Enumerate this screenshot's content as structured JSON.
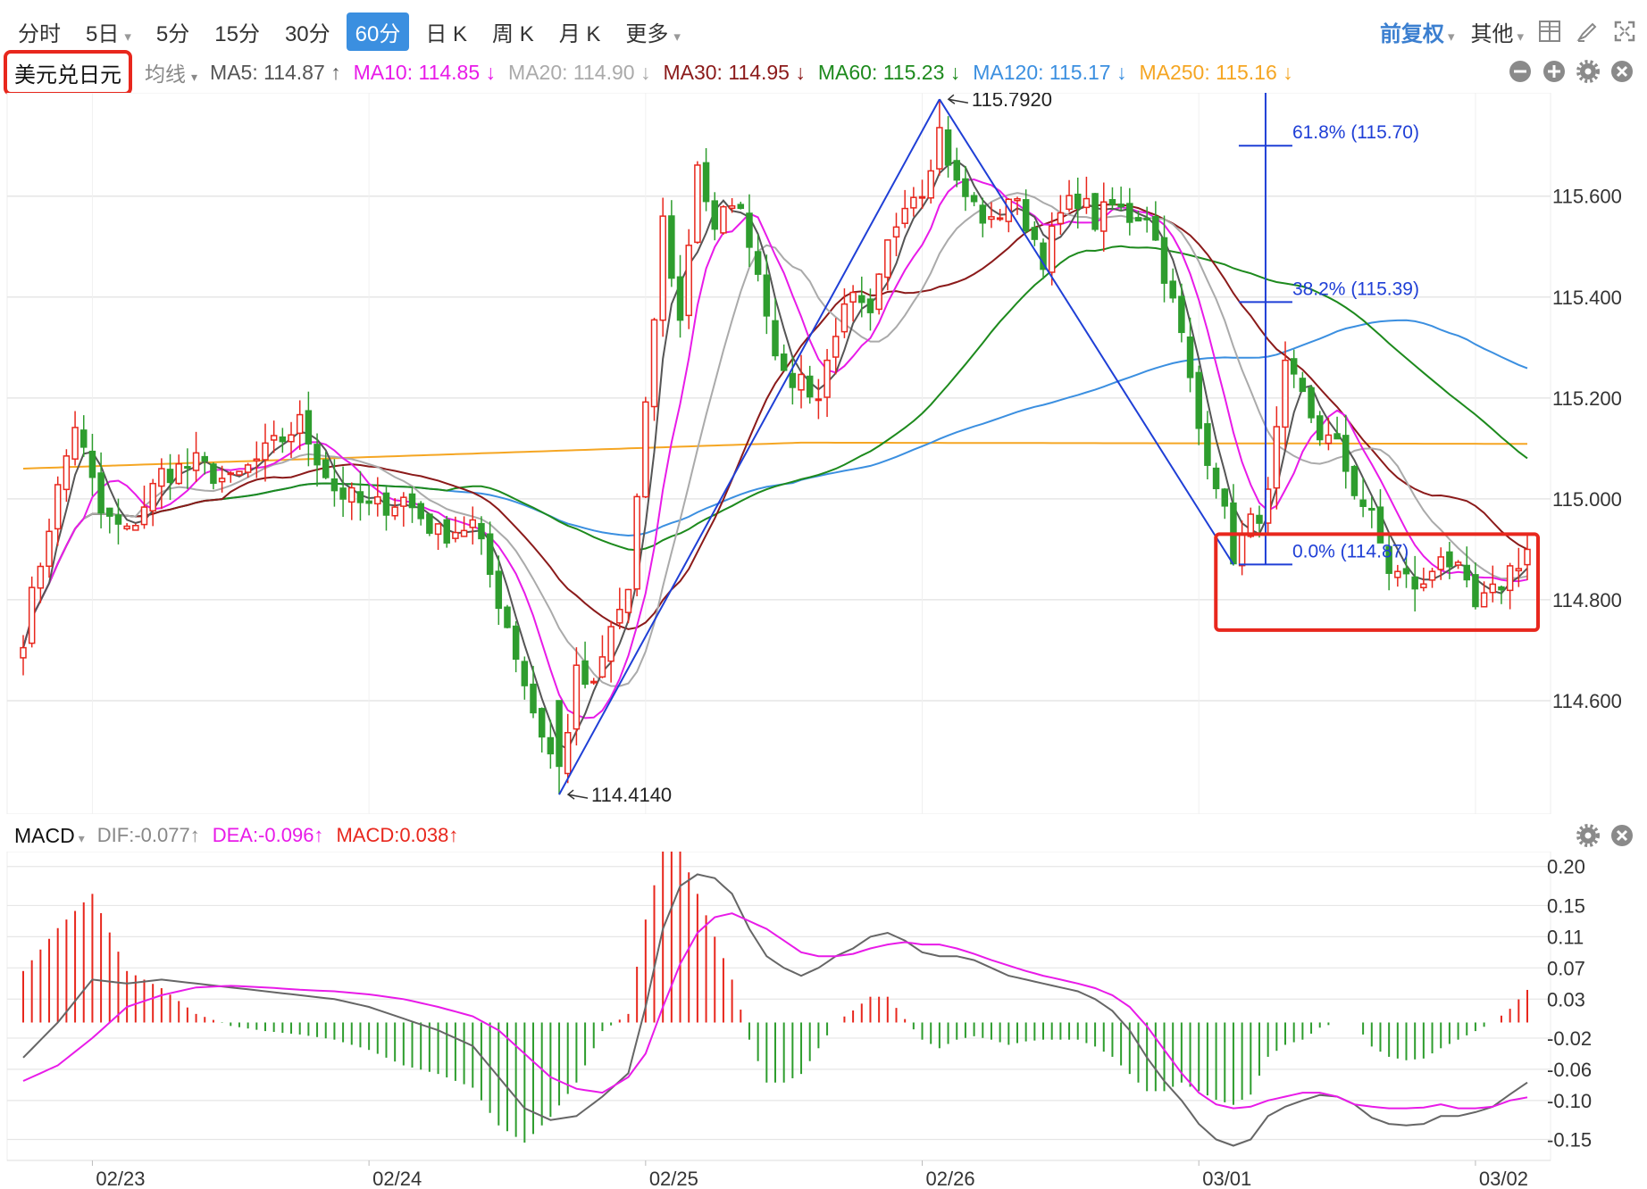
{
  "toolbar": {
    "periods": [
      {
        "label": "分时",
        "dropdown": false,
        "active": false
      },
      {
        "label": "5日",
        "dropdown": true,
        "active": false
      },
      {
        "label": "5分",
        "dropdown": false,
        "active": false
      },
      {
        "label": "15分",
        "dropdown": false,
        "active": false
      },
      {
        "label": "30分",
        "dropdown": false,
        "active": false
      },
      {
        "label": "60分",
        "dropdown": false,
        "active": true
      },
      {
        "label": "日 K",
        "dropdown": false,
        "active": false
      },
      {
        "label": "周 K",
        "dropdown": false,
        "active": false
      },
      {
        "label": "月 K",
        "dropdown": false,
        "active": false
      },
      {
        "label": "更多",
        "dropdown": true,
        "active": false
      }
    ],
    "adjust_label": "前复权",
    "other_label": "其他",
    "tool_icons": [
      "layout-grid-icon",
      "draw-pen-icon",
      "fullscreen-icon"
    ]
  },
  "ma_bar": {
    "symbol": "美元兑日元",
    "ma_type": "均线",
    "items": [
      {
        "text": "MA5: 114.87 ↑",
        "color": "#555555"
      },
      {
        "text": "MA10: 114.85 ↓",
        "color": "#e81be8"
      },
      {
        "text": "MA20: 114.90 ↓",
        "color": "#aaaaaa"
      },
      {
        "text": "MA30: 114.95 ↓",
        "color": "#8b1a1a"
      },
      {
        "text": "MA60: 115.23 ↓",
        "color": "#1d8a1d"
      },
      {
        "text": "MA120: 115.17 ↓",
        "color": "#3b8fe0"
      },
      {
        "text": "MA250: 115.16 ↓",
        "color": "#f5a623"
      }
    ],
    "controls": [
      "minus-circle-icon",
      "plus-circle-icon",
      "gear-icon",
      "close-circle-icon"
    ]
  },
  "macd_bar": {
    "title": "MACD",
    "items": [
      {
        "text": "DIF:-0.077↑",
        "color": "#888888"
      },
      {
        "text": "DEA:-0.096↑",
        "color": "#e81be8"
      },
      {
        "text": "MACD:0.038↑",
        "color": "#e8271d"
      }
    ],
    "controls": [
      "gear-icon",
      "close-circle-icon"
    ]
  },
  "colors": {
    "up": "#e8271d",
    "down": "#2e9d2e",
    "grid": "#e6e6e6",
    "ma5": "#555555",
    "ma10": "#e81be8",
    "ma20": "#aaaaaa",
    "ma30": "#8b1a1a",
    "ma60": "#1d8a1d",
    "ma120": "#3b8fe0",
    "ma250": "#f5a623",
    "dif": "#666666",
    "dea": "#e81be8",
    "fib": "#1f3fd6",
    "highlight": "#e8271d"
  },
  "chart_data": [
    {
      "type": "candlestick",
      "title": "美元兑日元",
      "interval": "60分",
      "ylim": [
        114.4,
        115.78
      ],
      "yticks": [
        "115.600",
        "115.400",
        "115.200",
        "115.000",
        "114.800",
        "114.600"
      ],
      "x_labels": [
        {
          "label": "02/23",
          "index": 8
        },
        {
          "label": "02/24",
          "index": 40
        },
        {
          "label": "02/25",
          "index": 72
        },
        {
          "label": "02/26",
          "index": 104
        },
        {
          "label": "03/01",
          "index": 136
        },
        {
          "label": "03/02",
          "index": 168
        }
      ],
      "price_keypoints": [
        [
          0,
          114.73
        ],
        [
          3,
          114.95
        ],
        [
          6,
          115.15
        ],
        [
          9,
          114.97
        ],
        [
          12,
          114.93
        ],
        [
          16,
          115.05
        ],
        [
          20,
          115.07
        ],
        [
          24,
          115.03
        ],
        [
          28,
          115.09
        ],
        [
          32,
          115.15
        ],
        [
          36,
          115.02
        ],
        [
          40,
          114.98
        ],
        [
          44,
          115.0
        ],
        [
          48,
          114.93
        ],
        [
          52,
          114.95
        ],
        [
          56,
          114.75
        ],
        [
          59,
          114.58
        ],
        [
          62,
          114.45
        ],
        [
          64,
          114.65
        ],
        [
          66,
          114.62
        ],
        [
          68,
          114.74
        ],
        [
          70,
          114.82
        ],
        [
          72,
          115.17
        ],
        [
          74,
          115.55
        ],
        [
          76,
          115.35
        ],
        [
          78,
          115.67
        ],
        [
          80,
          115.52
        ],
        [
          82,
          115.6
        ],
        [
          84,
          115.52
        ],
        [
          86,
          115.38
        ],
        [
          88,
          115.23
        ],
        [
          90,
          115.24
        ],
        [
          92,
          115.2
        ],
        [
          94,
          115.34
        ],
        [
          96,
          115.39
        ],
        [
          98,
          115.35
        ],
        [
          100,
          115.5
        ],
        [
          102,
          115.6
        ],
        [
          104,
          115.62
        ],
        [
          106,
          115.73
        ],
        [
          108,
          115.62
        ],
        [
          110,
          115.58
        ],
        [
          112,
          115.54
        ],
        [
          114,
          115.6
        ],
        [
          116,
          115.55
        ],
        [
          118,
          115.48
        ],
        [
          120,
          115.56
        ],
        [
          122,
          115.6
        ],
        [
          124,
          115.55
        ],
        [
          126,
          115.58
        ],
        [
          128,
          115.56
        ],
        [
          130,
          115.57
        ],
        [
          132,
          115.45
        ],
        [
          134,
          115.32
        ],
        [
          136,
          115.14
        ],
        [
          138,
          115.04
        ],
        [
          140,
          114.89
        ],
        [
          142,
          114.95
        ],
        [
          144,
          115.0
        ],
        [
          146,
          115.25
        ],
        [
          148,
          115.2
        ],
        [
          150,
          115.13
        ],
        [
          152,
          115.1
        ],
        [
          154,
          115.02
        ],
        [
          156,
          114.96
        ],
        [
          158,
          114.86
        ],
        [
          160,
          114.84
        ],
        [
          162,
          114.82
        ],
        [
          164,
          114.9
        ],
        [
          166,
          114.85
        ],
        [
          168,
          114.78
        ],
        [
          170,
          114.81
        ],
        [
          172,
          114.86
        ],
        [
          174,
          114.9
        ]
      ],
      "candles_count": 175,
      "moving_averages": [
        "MA5",
        "MA10",
        "MA20",
        "MA30",
        "MA60",
        "MA120",
        "MA250"
      ],
      "annotations": [
        {
          "text": "115.7920",
          "index": 106,
          "value": 115.792,
          "arrow": "left"
        },
        {
          "text": "114.4140",
          "index": 62,
          "value": 114.414,
          "arrow": "left"
        }
      ],
      "trendlines": [
        {
          "from": {
            "index": 62,
            "value": 114.414
          },
          "to": {
            "index": 106,
            "value": 115.792
          }
        },
        {
          "from": {
            "index": 106,
            "value": 115.792
          },
          "to": {
            "index": 140,
            "value": 114.87
          }
        }
      ],
      "fibonacci": {
        "anchor_index": 140,
        "top_index": 106,
        "levels": [
          {
            "text": "61.8% (115.70)",
            "value": 115.7
          },
          {
            "text": "38.2% (115.39)",
            "value": 115.39
          },
          {
            "text": "0.0% (114.87)",
            "value": 114.87
          }
        ]
      },
      "highlight_box": {
        "from_index": 139,
        "to_index": 175,
        "top": 114.93,
        "bottom": 114.74
      }
    },
    {
      "type": "bar+line",
      "title": "MACD",
      "ylim": [
        -0.17,
        0.21
      ],
      "yticks": [
        "0.20",
        "0.15",
        "0.11",
        "0.07",
        "0.03",
        "-0.02",
        "-0.06",
        "-0.10",
        "-0.15"
      ],
      "ytick_values": [
        0.2,
        0.15,
        0.11,
        0.07,
        0.03,
        -0.02,
        -0.06,
        -0.1,
        -0.15
      ],
      "series": [
        {
          "name": "DIF",
          "keypoints": [
            [
              0,
              -0.045
            ],
            [
              4,
              0.0
            ],
            [
              8,
              0.055
            ],
            [
              12,
              0.05
            ],
            [
              16,
              0.055
            ],
            [
              20,
              0.05
            ],
            [
              24,
              0.045
            ],
            [
              28,
              0.04
            ],
            [
              32,
              0.035
            ],
            [
              36,
              0.03
            ],
            [
              40,
              0.02
            ],
            [
              44,
              0.005
            ],
            [
              48,
              -0.01
            ],
            [
              52,
              -0.03
            ],
            [
              55,
              -0.07
            ],
            [
              58,
              -0.11
            ],
            [
              61,
              -0.125
            ],
            [
              64,
              -0.12
            ],
            [
              67,
              -0.095
            ],
            [
              70,
              -0.065
            ],
            [
              72,
              0.02
            ],
            [
              74,
              0.12
            ],
            [
              76,
              0.175
            ],
            [
              78,
              0.19
            ],
            [
              80,
              0.185
            ],
            [
              82,
              0.165
            ],
            [
              84,
              0.12
            ],
            [
              86,
              0.085
            ],
            [
              88,
              0.07
            ],
            [
              90,
              0.06
            ],
            [
              92,
              0.07
            ],
            [
              94,
              0.085
            ],
            [
              96,
              0.095
            ],
            [
              98,
              0.11
            ],
            [
              100,
              0.115
            ],
            [
              102,
              0.105
            ],
            [
              104,
              0.09
            ],
            [
              106,
              0.085
            ],
            [
              108,
              0.085
            ],
            [
              110,
              0.08
            ],
            [
              112,
              0.07
            ],
            [
              114,
              0.06
            ],
            [
              116,
              0.055
            ],
            [
              118,
              0.05
            ],
            [
              120,
              0.045
            ],
            [
              122,
              0.04
            ],
            [
              124,
              0.03
            ],
            [
              126,
              0.015
            ],
            [
              128,
              -0.01
            ],
            [
              130,
              -0.045
            ],
            [
              132,
              -0.075
            ],
            [
              134,
              -0.1
            ],
            [
              136,
              -0.13
            ],
            [
              138,
              -0.15
            ],
            [
              140,
              -0.158
            ],
            [
              142,
              -0.15
            ],
            [
              144,
              -0.12
            ],
            [
              146,
              -0.108
            ],
            [
              148,
              -0.1
            ],
            [
              150,
              -0.093
            ],
            [
              152,
              -0.095
            ],
            [
              154,
              -0.105
            ],
            [
              156,
              -0.122
            ],
            [
              158,
              -0.13
            ],
            [
              160,
              -0.132
            ],
            [
              162,
              -0.13
            ],
            [
              164,
              -0.12
            ],
            [
              166,
              -0.12
            ],
            [
              168,
              -0.115
            ],
            [
              170,
              -0.108
            ],
            [
              172,
              -0.092
            ],
            [
              174,
              -0.077
            ]
          ]
        },
        {
          "name": "DEA",
          "keypoints": [
            [
              0,
              -0.075
            ],
            [
              4,
              -0.055
            ],
            [
              8,
              -0.02
            ],
            [
              12,
              0.02
            ],
            [
              16,
              0.035
            ],
            [
              20,
              0.045
            ],
            [
              24,
              0.047
            ],
            [
              28,
              0.045
            ],
            [
              32,
              0.042
            ],
            [
              36,
              0.04
            ],
            [
              40,
              0.036
            ],
            [
              44,
              0.03
            ],
            [
              48,
              0.02
            ],
            [
              52,
              0.008
            ],
            [
              55,
              -0.01
            ],
            [
              58,
              -0.04
            ],
            [
              61,
              -0.07
            ],
            [
              64,
              -0.085
            ],
            [
              67,
              -0.09
            ],
            [
              70,
              -0.07
            ],
            [
              72,
              -0.04
            ],
            [
              74,
              0.02
            ],
            [
              76,
              0.075
            ],
            [
              78,
              0.115
            ],
            [
              80,
              0.135
            ],
            [
              82,
              0.14
            ],
            [
              84,
              0.13
            ],
            [
              86,
              0.12
            ],
            [
              88,
              0.105
            ],
            [
              90,
              0.09
            ],
            [
              92,
              0.085
            ],
            [
              94,
              0.085
            ],
            [
              96,
              0.088
            ],
            [
              98,
              0.095
            ],
            [
              100,
              0.1
            ],
            [
              102,
              0.103
            ],
            [
              104,
              0.1
            ],
            [
              106,
              0.1
            ],
            [
              108,
              0.095
            ],
            [
              110,
              0.088
            ],
            [
              112,
              0.08
            ],
            [
              114,
              0.073
            ],
            [
              116,
              0.066
            ],
            [
              118,
              0.06
            ],
            [
              120,
              0.055
            ],
            [
              122,
              0.05
            ],
            [
              124,
              0.044
            ],
            [
              126,
              0.035
            ],
            [
              128,
              0.02
            ],
            [
              130,
              -0.005
            ],
            [
              132,
              -0.035
            ],
            [
              134,
              -0.065
            ],
            [
              136,
              -0.09
            ],
            [
              138,
              -0.105
            ],
            [
              140,
              -0.11
            ],
            [
              142,
              -0.108
            ],
            [
              144,
              -0.1
            ],
            [
              146,
              -0.095
            ],
            [
              148,
              -0.09
            ],
            [
              150,
              -0.09
            ],
            [
              152,
              -0.095
            ],
            [
              154,
              -0.105
            ],
            [
              156,
              -0.108
            ],
            [
              158,
              -0.11
            ],
            [
              160,
              -0.11
            ],
            [
              162,
              -0.109
            ],
            [
              164,
              -0.105
            ],
            [
              166,
              -0.11
            ],
            [
              168,
              -0.11
            ],
            [
              170,
              -0.108
            ],
            [
              172,
              -0.1
            ],
            [
              174,
              -0.096
            ]
          ]
        }
      ]
    }
  ]
}
